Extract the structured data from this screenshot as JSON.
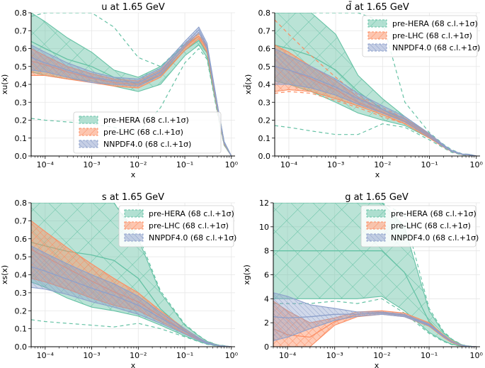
{
  "figure": {
    "layout": "2x2 grid"
  },
  "legend_entries": [
    "pre-HERA (68 c.l.+1σ)",
    "pre-LHC (68 c.l.+1σ)",
    "NNPDF4.0 (68 c.l.+1σ)"
  ],
  "colors": {
    "preHERA": "#66c2a5",
    "preLHC": "#fc8d62",
    "nnpdf40": "#8da0cb"
  },
  "chart_data": [
    {
      "type": "area",
      "title": "u at 1.65 GeV",
      "xlabel": "x",
      "ylabel": "xu(x)",
      "xscale": "log",
      "xlim": [
        5e-05,
        1.2
      ],
      "ylim": [
        0,
        0.8
      ],
      "yticks": [
        0.0,
        0.1,
        0.2,
        0.3,
        0.4,
        0.5,
        0.6,
        0.7,
        0.8
      ],
      "ytick_labels": [
        "0.0",
        "0.1",
        "0.2",
        "0.3",
        "0.4",
        "0.5",
        "0.6",
        "0.7",
        "0.8"
      ],
      "xticks": [
        0.0001,
        0.001,
        0.01,
        0.1,
        1
      ],
      "xtick_labels": [
        "10⁻⁴",
        "10⁻³",
        "10⁻²",
        "10⁻¹",
        "10⁰"
      ],
      "legend_position": "lower-center",
      "x": [
        5e-05,
        0.0001,
        0.0003,
        0.001,
        0.003,
        0.01,
        0.03,
        0.1,
        0.2,
        0.3,
        0.5,
        0.7,
        1.0
      ],
      "series": [
        {
          "name": "pre-HERA (68 c.l.+1σ)",
          "color_key": "preHERA",
          "upper": [
            0.8,
            0.75,
            0.66,
            0.58,
            0.48,
            0.44,
            0.5,
            0.62,
            0.67,
            0.6,
            0.28,
            0.08,
            0.0
          ],
          "lower": [
            0.47,
            0.45,
            0.43,
            0.42,
            0.39,
            0.36,
            0.4,
            0.56,
            0.62,
            0.55,
            0.25,
            0.06,
            0.0
          ],
          "central": [
            0.64,
            0.6,
            0.54,
            0.5,
            0.44,
            0.4,
            0.45,
            0.59,
            0.645,
            0.575,
            0.265,
            0.07,
            0.0
          ],
          "dashed_upper": [
            0.78,
            0.8,
            0.8,
            0.8,
            0.72,
            0.55,
            0.5,
            0.63,
            0.68,
            0.61,
            0.29,
            0.08,
            0.0
          ],
          "dashed_lower": [
            0.21,
            0.2,
            0.19,
            0.18,
            0.16,
            0.13,
            0.27,
            0.52,
            0.6,
            0.54,
            0.24,
            0.06,
            0.0
          ]
        },
        {
          "name": "pre-LHC (68 c.l.+1σ)",
          "color_key": "preLHC",
          "upper": [
            0.6,
            0.56,
            0.5,
            0.46,
            0.43,
            0.42,
            0.48,
            0.62,
            0.69,
            0.61,
            0.285,
            0.075,
            0.0
          ],
          "lower": [
            0.45,
            0.45,
            0.43,
            0.41,
            0.39,
            0.38,
            0.44,
            0.59,
            0.655,
            0.58,
            0.26,
            0.065,
            0.0
          ],
          "central": [
            0.53,
            0.51,
            0.47,
            0.435,
            0.41,
            0.4,
            0.46,
            0.605,
            0.67,
            0.595,
            0.27,
            0.07,
            0.0
          ]
        },
        {
          "name": "NNPDF4.0 (68 c.l.+1σ)",
          "color_key": "nnpdf40",
          "upper": [
            0.62,
            0.58,
            0.52,
            0.47,
            0.44,
            0.43,
            0.49,
            0.64,
            0.72,
            0.63,
            0.29,
            0.08,
            0.0
          ],
          "lower": [
            0.48,
            0.47,
            0.44,
            0.41,
            0.4,
            0.39,
            0.45,
            0.61,
            0.69,
            0.6,
            0.27,
            0.07,
            0.0
          ],
          "central": [
            0.55,
            0.52,
            0.48,
            0.44,
            0.42,
            0.41,
            0.47,
            0.625,
            0.705,
            0.615,
            0.28,
            0.075,
            0.0
          ]
        }
      ]
    },
    {
      "type": "area",
      "title": "d̄ at 1.65 GeV",
      "xlabel": "x",
      "ylabel": "xd̄(x)",
      "xscale": "log",
      "xlim": [
        5e-05,
        1.2
      ],
      "ylim": [
        0,
        0.8
      ],
      "yticks": [
        0.0,
        0.1,
        0.2,
        0.3,
        0.4,
        0.5,
        0.6,
        0.7,
        0.8
      ],
      "ytick_labels": [
        "0.0",
        "0.1",
        "0.2",
        "0.3",
        "0.4",
        "0.5",
        "0.6",
        "0.7",
        "0.8"
      ],
      "xticks": [
        0.0001,
        0.001,
        0.01,
        0.1,
        1
      ],
      "xtick_labels": [
        "10⁻⁴",
        "10⁻³",
        "10⁻²",
        "10⁻¹",
        "10⁰"
      ],
      "legend_position": "top-right",
      "x": [
        5e-05,
        0.0001,
        0.0003,
        0.001,
        0.003,
        0.01,
        0.03,
        0.1,
        0.2,
        0.3,
        0.5,
        0.7,
        1.0
      ],
      "series": [
        {
          "name": "pre-HERA (68 c.l.+1σ)",
          "color_key": "preHERA",
          "upper": [
            0.8,
            0.8,
            0.8,
            0.68,
            0.45,
            0.32,
            0.22,
            0.12,
            0.06,
            0.03,
            0.01,
            0.01,
            0.0
          ],
          "lower": [
            0.42,
            0.4,
            0.36,
            0.3,
            0.24,
            0.2,
            0.17,
            0.1,
            0.05,
            0.025,
            0.008,
            0.006,
            0.0
          ],
          "central": [
            0.62,
            0.6,
            0.56,
            0.48,
            0.36,
            0.26,
            0.195,
            0.11,
            0.055,
            0.028,
            0.009,
            0.008,
            0.0
          ],
          "dashed_upper": [
            0.8,
            0.8,
            0.8,
            0.8,
            0.8,
            0.75,
            0.3,
            0.13,
            0.065,
            0.035,
            0.012,
            0.01,
            0.0
          ],
          "dashed_lower": [
            0.17,
            0.16,
            0.14,
            0.12,
            0.12,
            0.18,
            0.16,
            0.09,
            0.045,
            0.02,
            0.006,
            0.004,
            0.0
          ]
        },
        {
          "name": "pre-LHC (68 c.l.+1σ)",
          "color_key": "preLHC",
          "upper": [
            0.62,
            0.58,
            0.5,
            0.42,
            0.33,
            0.26,
            0.21,
            0.12,
            0.06,
            0.03,
            0.01,
            0.008,
            0.0
          ],
          "lower": [
            0.36,
            0.37,
            0.36,
            0.32,
            0.28,
            0.23,
            0.18,
            0.1,
            0.05,
            0.024,
            0.008,
            0.006,
            0.0
          ],
          "central": [
            0.5,
            0.48,
            0.43,
            0.37,
            0.3,
            0.245,
            0.195,
            0.11,
            0.055,
            0.027,
            0.009,
            0.007,
            0.0
          ],
          "dashed_upper": [
            0.76,
            0.68,
            0.56,
            0.44,
            0.34,
            0.27,
            0.21,
            0.12,
            0.06,
            0.03,
            0.01,
            0.008,
            0.0
          ],
          "dashed_lower": [
            0.35,
            0.36,
            0.35,
            0.31,
            0.27,
            0.22,
            0.18,
            0.1,
            0.05,
            0.024,
            0.008,
            0.006,
            0.0
          ]
        },
        {
          "name": "NNPDF4.0 (68 c.l.+1σ)",
          "color_key": "nnpdf40",
          "upper": [
            0.6,
            0.56,
            0.5,
            0.43,
            0.35,
            0.28,
            0.22,
            0.125,
            0.062,
            0.031,
            0.011,
            0.009,
            0.0
          ],
          "lower": [
            0.4,
            0.4,
            0.38,
            0.34,
            0.29,
            0.24,
            0.19,
            0.105,
            0.052,
            0.025,
            0.008,
            0.006,
            0.0
          ],
          "central": [
            0.5,
            0.48,
            0.44,
            0.385,
            0.32,
            0.26,
            0.205,
            0.115,
            0.057,
            0.028,
            0.0095,
            0.0075,
            0.0
          ]
        }
      ]
    },
    {
      "type": "area",
      "title": "s at 1.65 GeV",
      "xlabel": "x",
      "ylabel": "xs(x)",
      "xscale": "log",
      "xlim": [
        5e-05,
        1.2
      ],
      "ylim": [
        0,
        0.8
      ],
      "yticks": [
        0.0,
        0.1,
        0.2,
        0.3,
        0.4,
        0.5,
        0.6,
        0.7,
        0.8
      ],
      "ytick_labels": [
        "0.0",
        "0.1",
        "0.2",
        "0.3",
        "0.4",
        "0.5",
        "0.6",
        "0.7",
        "0.8"
      ],
      "xticks": [
        0.0001,
        0.001,
        0.01,
        0.1,
        1
      ],
      "xtick_labels": [
        "10⁻⁴",
        "10⁻³",
        "10⁻²",
        "10⁻¹",
        "10⁰"
      ],
      "legend_position": "top-right",
      "x": [
        5e-05,
        0.0001,
        0.0003,
        0.001,
        0.003,
        0.01,
        0.03,
        0.1,
        0.2,
        0.3,
        0.5,
        0.7,
        1.0
      ],
      "series": [
        {
          "name": "pre-HERA (68 c.l.+1σ)",
          "color_key": "preHERA",
          "upper": [
            0.8,
            0.8,
            0.8,
            0.8,
            0.8,
            0.6,
            0.3,
            0.12,
            0.06,
            0.03,
            0.01,
            0.005,
            0.0
          ],
          "lower": [
            0.36,
            0.33,
            0.27,
            0.22,
            0.2,
            0.17,
            0.12,
            0.06,
            0.03,
            0.015,
            0.005,
            0.002,
            0.0
          ],
          "central": [
            0.58,
            0.56,
            0.53,
            0.51,
            0.48,
            0.38,
            0.21,
            0.09,
            0.045,
            0.022,
            0.0075,
            0.0035,
            0.0
          ],
          "dashed_upper": [
            0.8,
            0.8,
            0.8,
            0.8,
            0.8,
            0.62,
            0.31,
            0.125,
            0.062,
            0.031,
            0.011,
            0.006,
            0.0
          ],
          "dashed_lower": [
            0.15,
            0.14,
            0.13,
            0.12,
            0.11,
            0.13,
            0.1,
            0.055,
            0.028,
            0.013,
            0.004,
            0.002,
            0.0
          ]
        },
        {
          "name": "pre-LHC (68 c.l.+1σ)",
          "color_key": "preLHC",
          "upper": [
            0.7,
            0.64,
            0.55,
            0.46,
            0.38,
            0.3,
            0.2,
            0.1,
            0.05,
            0.025,
            0.008,
            0.004,
            0.0
          ],
          "lower": [
            0.38,
            0.36,
            0.32,
            0.27,
            0.23,
            0.2,
            0.14,
            0.075,
            0.038,
            0.019,
            0.006,
            0.003,
            0.0
          ],
          "central": [
            0.54,
            0.5,
            0.435,
            0.365,
            0.305,
            0.25,
            0.17,
            0.0875,
            0.044,
            0.022,
            0.007,
            0.0035,
            0.0
          ]
        },
        {
          "name": "NNPDF4.0 (68 c.l.+1σ)",
          "color_key": "nnpdf40",
          "upper": [
            0.56,
            0.52,
            0.46,
            0.4,
            0.35,
            0.28,
            0.19,
            0.1,
            0.05,
            0.025,
            0.008,
            0.004,
            0.0
          ],
          "lower": [
            0.33,
            0.32,
            0.29,
            0.25,
            0.22,
            0.18,
            0.13,
            0.07,
            0.035,
            0.017,
            0.006,
            0.003,
            0.0
          ],
          "central": [
            0.445,
            0.42,
            0.375,
            0.325,
            0.285,
            0.23,
            0.16,
            0.085,
            0.0425,
            0.021,
            0.007,
            0.0035,
            0.0
          ]
        }
      ]
    },
    {
      "type": "area",
      "title": "g at 1.65 GeV",
      "xlabel": "x",
      "ylabel": "xg(x)",
      "xscale": "log",
      "xlim": [
        5e-05,
        1.2
      ],
      "ylim": [
        0,
        12
      ],
      "yticks": [
        0,
        2,
        4,
        6,
        8,
        10,
        12
      ],
      "ytick_labels": [
        "0",
        "2",
        "4",
        "6",
        "8",
        "10",
        "12"
      ],
      "xticks": [
        0.0001,
        0.001,
        0.01,
        0.1,
        1
      ],
      "xtick_labels": [
        "10⁻⁴",
        "10⁻³",
        "10⁻²",
        "10⁻¹",
        "10⁰"
      ],
      "legend_position": "top-right",
      "x": [
        5e-05,
        0.0001,
        0.0003,
        0.001,
        0.003,
        0.01,
        0.03,
        0.1,
        0.2,
        0.3,
        0.5,
        0.7,
        1.0
      ],
      "series": [
        {
          "name": "pre-HERA (68 c.l.+1σ)",
          "color_key": "preHERA",
          "upper": [
            12,
            12,
            12,
            12,
            12,
            12,
            10,
            3.0,
            1.2,
            0.6,
            0.15,
            0.05,
            0.0
          ],
          "lower": [
            4.0,
            4.0,
            4.0,
            4.0,
            4.0,
            4.2,
            3.0,
            1.2,
            0.5,
            0.2,
            0.05,
            0.02,
            0.0
          ],
          "central": [
            8.0,
            8.0,
            8.0,
            8.0,
            8.0,
            8.0,
            6.2,
            2.1,
            0.85,
            0.4,
            0.1,
            0.035,
            0.0
          ],
          "dashed_upper": [
            12,
            12,
            12,
            12,
            12,
            12,
            11,
            3.2,
            1.3,
            0.65,
            0.16,
            0.06,
            0.0
          ],
          "dashed_lower": [
            3.6,
            3.6,
            3.6,
            3.8,
            3.6,
            4.0,
            2.8,
            1.1,
            0.45,
            0.18,
            0.04,
            0.015,
            0.0
          ]
        },
        {
          "name": "pre-LHC (68 c.l.+1σ)",
          "color_key": "preLHC",
          "upper": [
            3.8,
            3.0,
            2.0,
            2.4,
            2.9,
            3.0,
            2.8,
            2.0,
            1.0,
            0.5,
            0.12,
            0.04,
            0.0
          ],
          "lower": [
            0.0,
            0.0,
            0.0,
            1.8,
            2.5,
            2.7,
            2.5,
            1.7,
            0.8,
            0.35,
            0.07,
            0.02,
            0.0
          ],
          "central": [
            1.5,
            1.0,
            0.8,
            2.1,
            2.7,
            2.85,
            2.65,
            1.85,
            0.9,
            0.43,
            0.1,
            0.03,
            0.0
          ]
        },
        {
          "name": "NNPDF4.0 (68 c.l.+1σ)",
          "color_key": "nnpdf40",
          "upper": [
            4.5,
            4.2,
            3.5,
            3.2,
            2.9,
            2.9,
            2.7,
            1.9,
            0.95,
            0.45,
            0.11,
            0.035,
            0.0
          ],
          "lower": [
            0.5,
            0.8,
            1.5,
            2.2,
            2.55,
            2.7,
            2.5,
            1.75,
            0.85,
            0.4,
            0.09,
            0.025,
            0.0
          ],
          "central": [
            2.5,
            2.4,
            2.5,
            2.7,
            2.72,
            2.8,
            2.6,
            1.82,
            0.9,
            0.42,
            0.1,
            0.03,
            0.0
          ]
        }
      ]
    }
  ]
}
